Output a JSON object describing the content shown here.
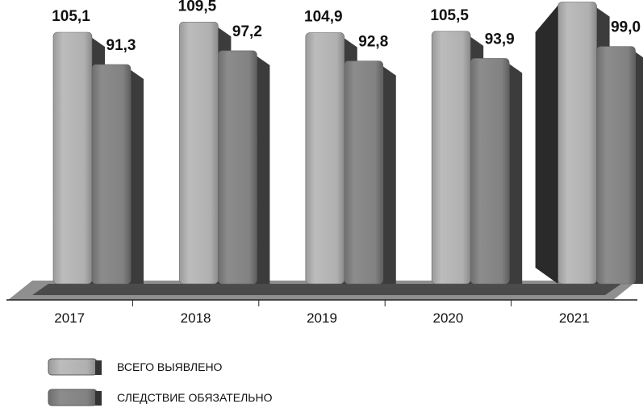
{
  "chart_data": {
    "type": "bar",
    "title": "",
    "xlabel": "",
    "ylabel": "",
    "categories": [
      "2017",
      "2018",
      "2019",
      "2020",
      "2021"
    ],
    "series": [
      {
        "name": "ВСЕГО ВЫЯВЛЕНО",
        "values": [
          105.1,
          109.5,
          104.9,
          105.5,
          118
        ],
        "labels": [
          "105,1",
          "109,5",
          "104,9",
          "105,5",
          null
        ],
        "color": "#b4b4b4"
      },
      {
        "name": "СЛЕДСТВИЕ ОБЯЗАТЕЛЬНО",
        "values": [
          91.3,
          97.2,
          92.8,
          93.9,
          99.0
        ],
        "labels": [
          "91,3",
          "97,2",
          "92,8",
          "93,9",
          "99,0"
        ],
        "color": "#858585"
      }
    ],
    "grid": false,
    "legend": "bottom-left"
  }
}
